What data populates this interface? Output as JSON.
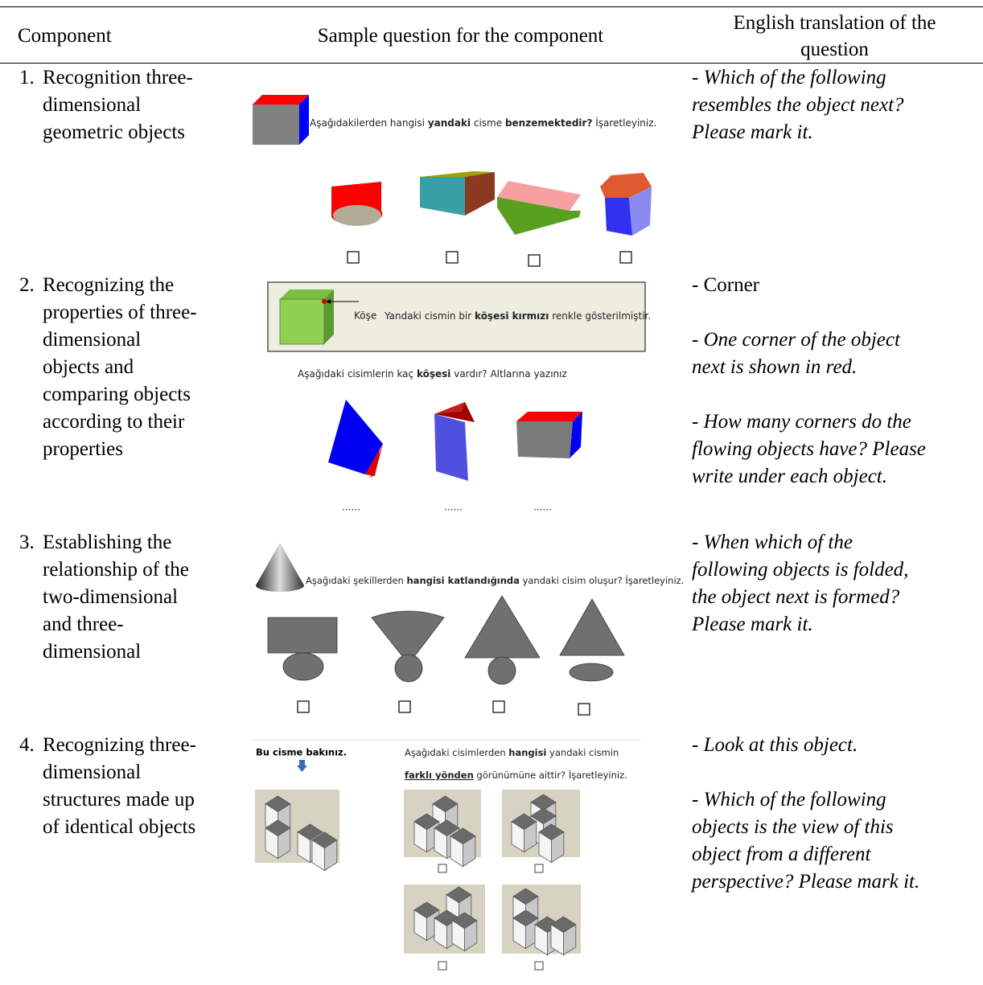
{
  "table": {
    "headers": [
      "Component",
      "Sample question for the component",
      "English translation of the question"
    ],
    "rows": [
      {
        "number": "1.",
        "component": [
          "Recognition three-",
          "dimensional",
          "geometric objects"
        ],
        "sample": {
          "question": [
            "Aşağıdakilerden hangisi ",
            "yandaki",
            " cisme ",
            "benzemektedir?",
            " İşaretleyiniz."
          ]
        },
        "translation": [
          [
            "- Which of the following",
            "resembles the object next?",
            "Please mark it."
          ]
        ]
      },
      {
        "number": "2.",
        "component": [
          "Recognizing the",
          "properties of three-",
          "dimensional",
          "objects and",
          "comparing objects",
          "according to their",
          "properties"
        ],
        "sample": {
          "label": "Köşe",
          "info": [
            "Yandaki cismin bir ",
            "köşesi kırmızı",
            " renkle gösterilmiştir."
          ],
          "question": [
            "Aşağıdaki cisimlerin kaç ",
            "köşesi",
            " vardır? Altlarına yazınız"
          ],
          "answers": [
            "......",
            "......",
            "......"
          ]
        },
        "translation": [
          [
            "- Corner"
          ],
          [
            "- One corner of the object",
            "next is shown in red."
          ],
          [
            "- How many corners do the",
            "flowing objects have? Please",
            "write under each object."
          ]
        ]
      },
      {
        "number": "3.",
        "component": [
          "Establishing the",
          "relationship of the",
          "two-dimensional",
          "and three-",
          "dimensional"
        ],
        "sample": {
          "question": [
            "Aşağıdaki şekillerden ",
            "hangisi katlandığında",
            " yandaki cisim oluşur? İşaretleyiniz."
          ]
        },
        "translation": [
          [
            "- When which of the",
            "following objects is folded,",
            "the object next is formed?",
            "Please mark it."
          ]
        ]
      },
      {
        "number": "4.",
        "component": [
          "Recognizing three-",
          "dimensional",
          "structures made up",
          "of identical objects"
        ],
        "sample": {
          "look": "Bu cisme bakınız.",
          "question": [
            "Aşağıdaki cisimlerden ",
            "hangisi",
            " yandaki cismin"
          ],
          "question2": [
            "farklı yönden",
            " görünümüne aittir? İşaretleyiniz."
          ]
        },
        "translation": [
          [
            "- Look at this object."
          ],
          [
            "- Which of the following",
            "objects is the view of this",
            "object from a different",
            "perspective? Please mark it."
          ]
        ]
      }
    ]
  }
}
